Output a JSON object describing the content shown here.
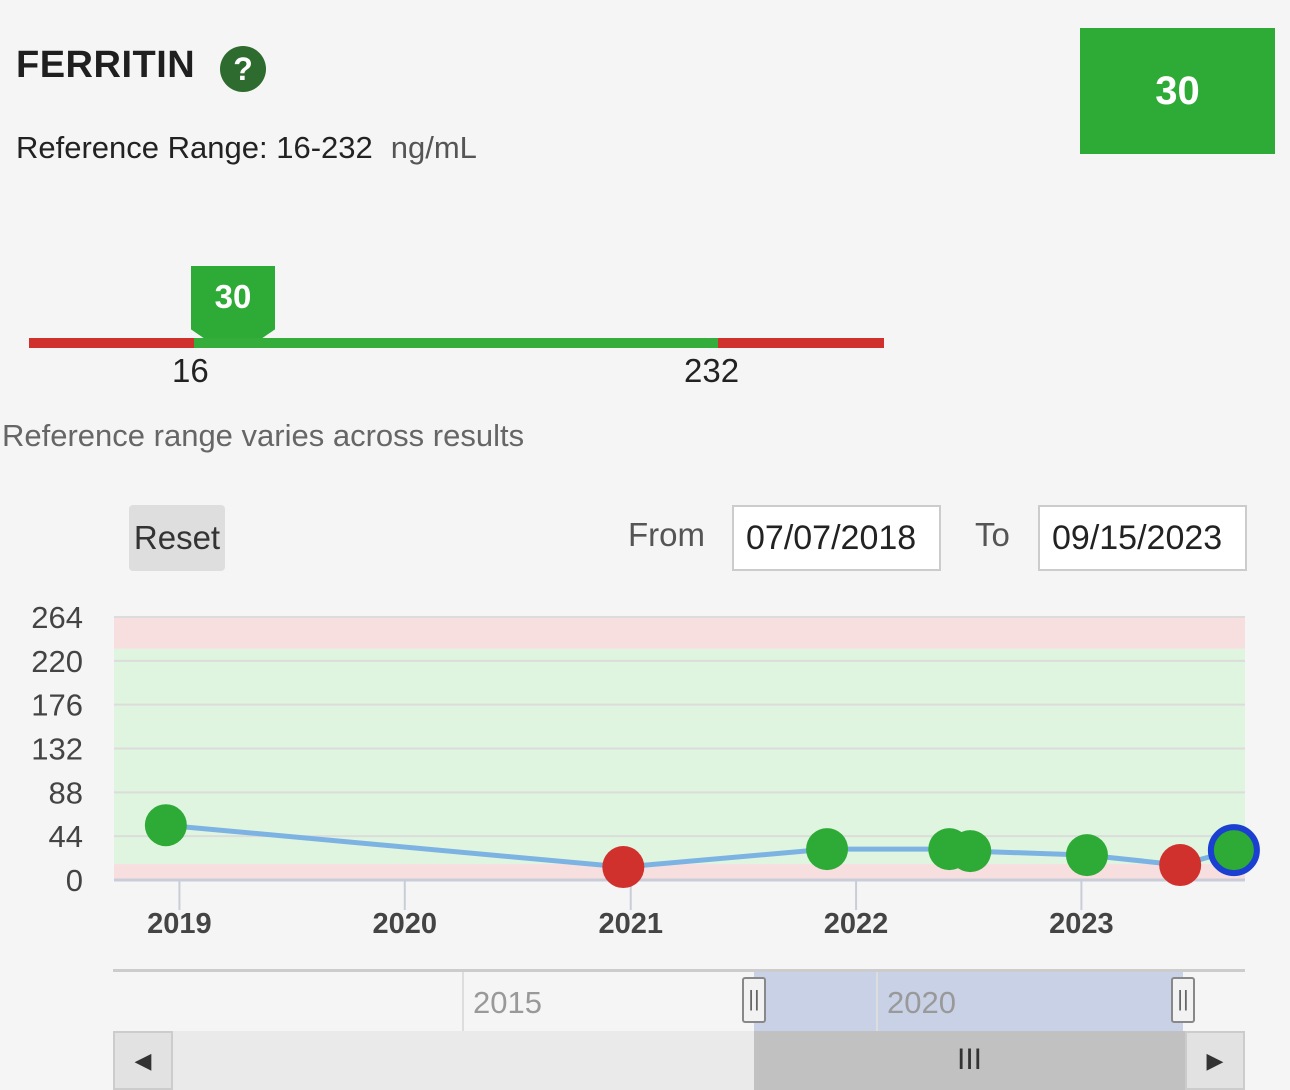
{
  "header": {
    "title": "FERRITIN",
    "help_icon": "?",
    "reference_range_label": "Reference Range: 16-232",
    "unit": "ng/mL"
  },
  "result": {
    "value": "30",
    "status_color": "#2eaa36"
  },
  "gauge": {
    "marker_value": "30",
    "low": "16",
    "high": "232",
    "colors": {
      "out_of_range": "#d0312d",
      "in_range": "#35ad3b"
    }
  },
  "note": "Reference range varies across results",
  "controls": {
    "reset_label": "Reset",
    "from_label": "From",
    "from_value": "07/07/2018",
    "to_label": "To",
    "to_value": "09/15/2023"
  },
  "chart_data": {
    "type": "line",
    "yticks": [
      "264",
      "220",
      "176",
      "132",
      "88",
      "44",
      "0"
    ],
    "ylim": [
      0,
      264
    ],
    "xticks": [
      "2019",
      "2020",
      "2021",
      "2022",
      "2023"
    ],
    "xlim": [
      "2018-07-07",
      "2023-09-15"
    ],
    "reference_range": [
      16,
      232
    ],
    "points": [
      {
        "date": "2018-12-10",
        "value": 55,
        "status": "normal"
      },
      {
        "date": "2020-12-20",
        "value": 13,
        "status": "low"
      },
      {
        "date": "2021-11-15",
        "value": 31,
        "status": "normal"
      },
      {
        "date": "2022-06-01",
        "value": 31,
        "status": "normal"
      },
      {
        "date": "2022-07-05",
        "value": 29,
        "status": "normal"
      },
      {
        "date": "2023-01-10",
        "value": 25,
        "status": "normal"
      },
      {
        "date": "2023-06-10",
        "value": 15,
        "status": "low"
      },
      {
        "date": "2023-09-05",
        "value": 30,
        "status": "normal",
        "selected": true
      }
    ],
    "colors": {
      "line": "#7db3e3",
      "normal": "#2eaa36",
      "low": "#d0312d",
      "selected_ring": "#1a3fd1",
      "in_range_band": "#dff5df",
      "out_of_range_band": "#f7dfe0"
    }
  },
  "navigator": {
    "labels": [
      "2015",
      "2020"
    ],
    "scroll_left": "◀",
    "scroll_right": "▶",
    "thumb_grip": "III",
    "handle_grip": "||"
  }
}
